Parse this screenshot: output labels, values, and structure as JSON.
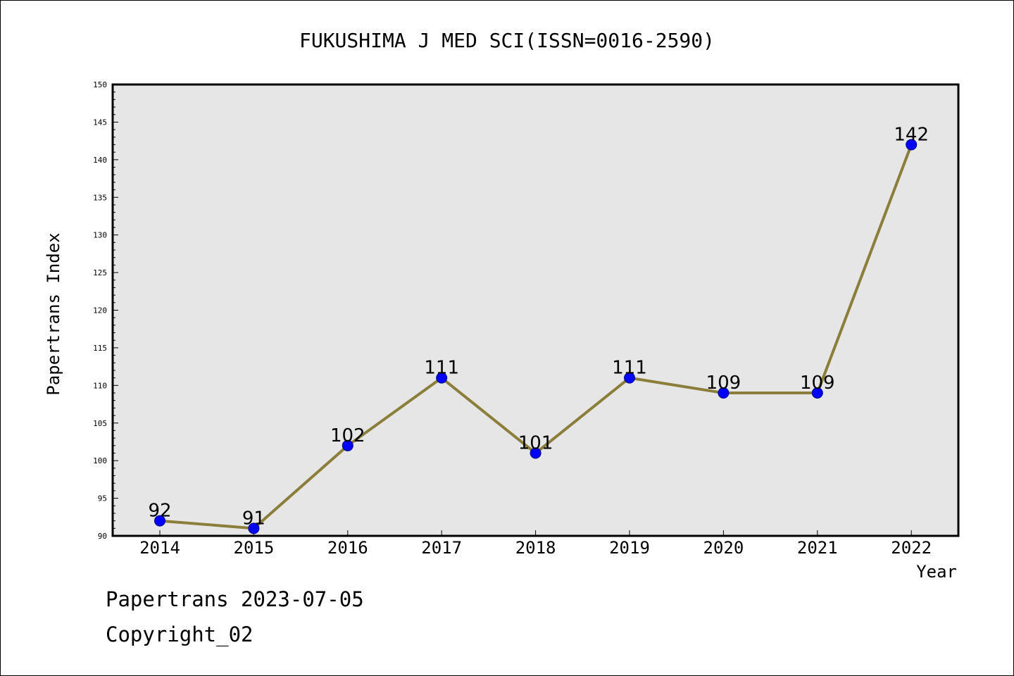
{
  "chart_data": {
    "type": "line",
    "title": "FUKUSHIMA J MED SCI(ISSN=0016-2590)",
    "xlabel": "Year",
    "ylabel": "Papertrans Index",
    "categories": [
      "2014",
      "2015",
      "2016",
      "2017",
      "2018",
      "2019",
      "2020",
      "2021",
      "2022"
    ],
    "series": [
      {
        "values": [
          92,
          91,
          102,
          111,
          101,
          111,
          109,
          109,
          142
        ],
        "color": "#8b7d3a",
        "marker_color": "#0000ff"
      }
    ],
    "ylim": [
      90,
      150
    ],
    "yticks": [
      90,
      95,
      100,
      105,
      110,
      115,
      120,
      125,
      130,
      135,
      140,
      145,
      150
    ],
    "data_labels": true,
    "grid": false,
    "plot_background": "#e6e6e6"
  },
  "footer": {
    "date_line": "Papertrans 2023-07-05",
    "copyright_line": "Copyright_02"
  }
}
